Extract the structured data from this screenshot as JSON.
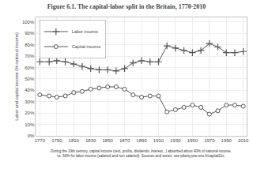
{
  "chart_data": {
    "type": "line",
    "title": "Figure 6.1. The capital-labor split in the Britain, 1770-2010",
    "ylabel": "Labor and capital income (% national income)",
    "annotations": [
      "During the 19th century, capital income (rent, profits, dividends, interest,..) absorbed about 40% of national income,\nvs. 60% for labor income (salaried and non salaried). Sources and series: see piketty.pse.ens.fr/capital21c."
    ],
    "x": [
      1770,
      1781,
      1790,
      1800,
      1810,
      1820,
      1830,
      1840,
      1850,
      1860,
      1870,
      1880,
      1890,
      1900,
      1910,
      1920,
      1930,
      1940,
      1950,
      1960,
      1970,
      1980,
      1990,
      2000,
      2010
    ],
    "series": [
      {
        "name": "Labor income",
        "color": "#555555",
        "marker": "plus",
        "values": [
          65,
          65,
          66,
          65,
          63,
          61,
          59,
          58,
          58,
          57,
          59,
          64,
          66,
          65,
          65,
          79,
          77,
          75,
          73,
          75,
          81,
          78,
          73,
          73,
          74
        ]
      },
      {
        "name": "Capital income",
        "color": "#555555",
        "marker": "circle",
        "values": [
          36,
          35,
          34,
          35,
          38,
          39,
          41,
          42,
          43,
          43,
          41,
          36,
          34,
          35,
          35,
          21,
          23,
          25,
          27,
          25,
          19,
          22,
          27,
          27,
          26
        ]
      }
    ],
    "xlim": [
      1765,
      2014
    ],
    "ylim": [
      0,
      104
    ],
    "xticks": [
      1770,
      1790,
      1810,
      1830,
      1850,
      1870,
      1890,
      1910,
      1930,
      1950,
      1970,
      1990,
      2010
    ],
    "yticks": [
      {
        "value": 0,
        "label": "0%"
      },
      {
        "value": 10,
        "label": "10%"
      },
      {
        "value": 20,
        "label": "20%"
      },
      {
        "value": 30,
        "label": "30%"
      },
      {
        "value": 40,
        "label": "40%"
      },
      {
        "value": 50,
        "label": "50%"
      },
      {
        "value": 60,
        "label": "60%"
      },
      {
        "value": 70,
        "label": "70%"
      },
      {
        "value": 80,
        "label": "80%"
      },
      {
        "value": 90,
        "label": "90%"
      },
      {
        "value": 100,
        "label": "100%"
      }
    ],
    "grid": true,
    "legend": "upper left"
  }
}
